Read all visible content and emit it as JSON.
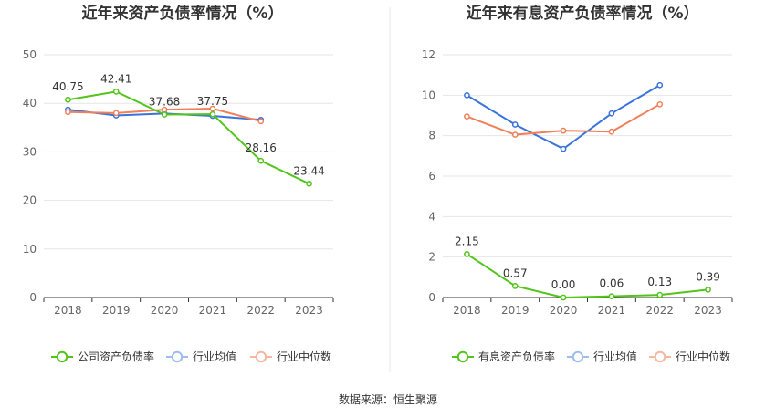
{
  "source": "数据来源：恒生聚源",
  "colors": {
    "green": "#52c41a",
    "blue": "#3a73dc",
    "orange": "#f0805a",
    "lightblue": "#9dbcef",
    "lightorange": "#f5b79d",
    "grid": "#e6e6e6",
    "axis": "#333333"
  },
  "chart_data": [
    {
      "type": "line",
      "title": "近年来资产负债率情况（%）",
      "categories": [
        "2018",
        "2019",
        "2020",
        "2021",
        "2022",
        "2023"
      ],
      "ylim": [
        0,
        50
      ],
      "yticks": [
        "0",
        "10",
        "20",
        "30",
        "40",
        "50"
      ],
      "grid": true,
      "legend_position": "bottom",
      "series": [
        {
          "name": "公司资产负债率",
          "values": [
            40.75,
            42.41,
            37.68,
            37.75,
            28.16,
            23.44
          ],
          "labels": [
            "40.75",
            "42.41",
            "37.68",
            "37.75",
            "28.16",
            "23.44"
          ],
          "color": "#52c41a"
        },
        {
          "name": "行业均值",
          "values": [
            38.7,
            37.5,
            37.9,
            37.4,
            36.6,
            null
          ],
          "color": "#3a73dc"
        },
        {
          "name": "行业中位数",
          "values": [
            38.2,
            38.0,
            38.7,
            38.9,
            36.3,
            null
          ],
          "color": "#f0805a"
        }
      ]
    },
    {
      "type": "line",
      "title": "近年来有息资产负债率情况（%）",
      "categories": [
        "2018",
        "2019",
        "2020",
        "2021",
        "2022",
        "2023"
      ],
      "ylim": [
        0,
        12
      ],
      "yticks": [
        "0",
        "2",
        "4",
        "6",
        "8",
        "10",
        "12"
      ],
      "grid": true,
      "legend_position": "bottom",
      "series": [
        {
          "name": "有息资产负债率",
          "values": [
            2.15,
            0.57,
            0.0,
            0.06,
            0.13,
            0.39
          ],
          "labels": [
            "2.15",
            "0.57",
            "0.00",
            "0.06",
            "0.13",
            "0.39"
          ],
          "color": "#52c41a"
        },
        {
          "name": "行业均值",
          "values": [
            10.0,
            8.55,
            7.35,
            9.1,
            10.5,
            null
          ],
          "color": "#3a73dc"
        },
        {
          "name": "行业中位数",
          "values": [
            8.95,
            8.05,
            8.25,
            8.2,
            9.55,
            null
          ],
          "color": "#f0805a"
        }
      ]
    }
  ]
}
